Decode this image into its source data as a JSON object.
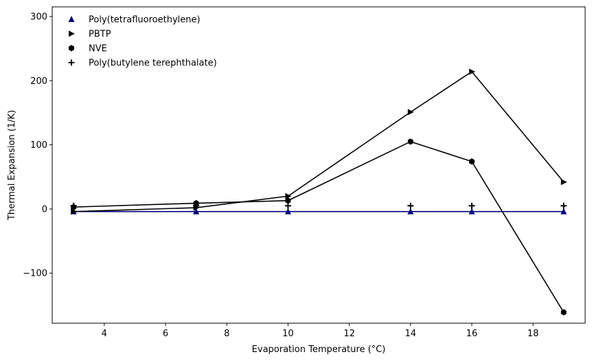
{
  "chart_data": {
    "type": "line",
    "title": "",
    "xlabel": "Evaporation Temperature (°C)",
    "ylabel": "Thermal Expansion (1/K)",
    "xlim": [
      2.3,
      19.7
    ],
    "ylim": [
      -178,
      315
    ],
    "xticks": [
      4,
      6,
      8,
      10,
      12,
      14,
      16,
      18
    ],
    "yticks": [
      -100,
      0,
      100,
      200,
      300
    ],
    "ytick_labels": [
      "−100",
      "0",
      "100",
      "200",
      "300"
    ],
    "grid": false,
    "legend_position": "top-left",
    "series": [
      {
        "name": "Poly(tetrafluoroethylene)",
        "marker": "triangle-up",
        "color": "#00007f",
        "line_color": "#00007f",
        "x": [
          3,
          7,
          10,
          14,
          16,
          19
        ],
        "y": [
          -4,
          -4,
          -4,
          -4,
          -4,
          -4
        ]
      },
      {
        "name": "PBTP",
        "marker": "triangle-right",
        "color": "#000000",
        "line_color": "#000000",
        "x": [
          3,
          7,
          10,
          14,
          16,
          19
        ],
        "y": [
          -4,
          2,
          20,
          151,
          214,
          42
        ]
      },
      {
        "name": "NVE",
        "marker": "hexagon",
        "color": "#000000",
        "line_color": "#000000",
        "x": [
          3,
          7,
          10,
          14,
          16,
          19
        ],
        "y": [
          3,
          9,
          13,
          105,
          74,
          -161
        ]
      },
      {
        "name": "Poly(butylene terephthalate)",
        "marker": "plus",
        "color": "#000000",
        "line_color": null,
        "x": [
          3,
          7,
          10,
          14,
          16,
          19
        ],
        "y": [
          5,
          5,
          5,
          5,
          5,
          5
        ]
      }
    ]
  }
}
